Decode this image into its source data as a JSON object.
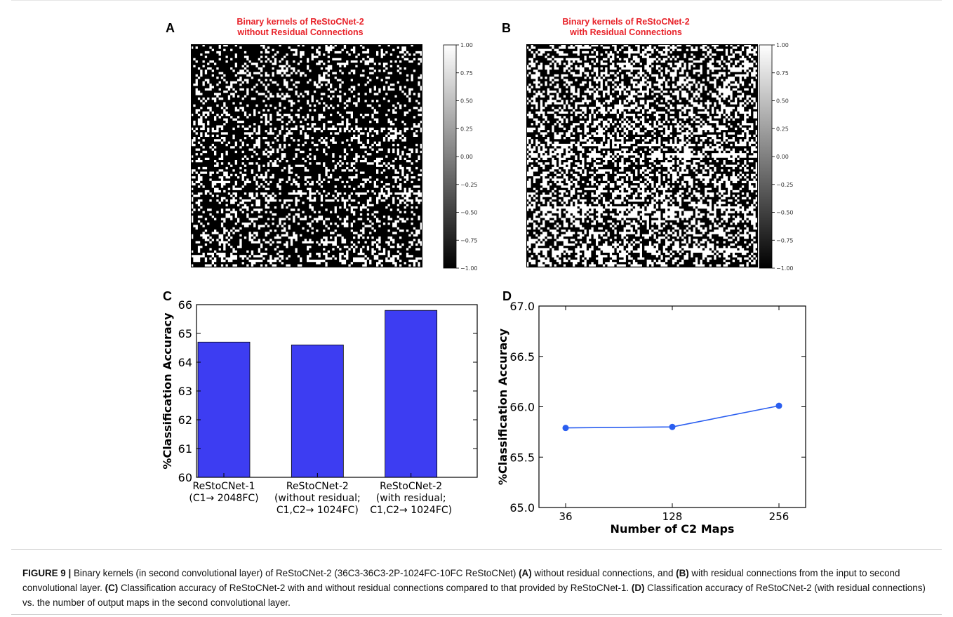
{
  "panels": {
    "a": {
      "letter": "A",
      "title_line1": "Binary kernels of ReStoCNet-2",
      "title_line2": "without Residual Connections"
    },
    "b": {
      "letter": "B",
      "title_line1": "Binary kernels of ReStoCNet-2",
      "title_line2": "with Residual Connections"
    },
    "c": {
      "letter": "C"
    },
    "d": {
      "letter": "D"
    }
  },
  "colorbar_ticks": [
    "1.00",
    "0.75",
    "0.50",
    "0.25",
    "0.00",
    "−0.25",
    "−0.50",
    "−0.75",
    "−1.00"
  ],
  "chart_data": [
    {
      "type": "heatmap",
      "colormap": "gray",
      "vmin": -1.0,
      "vmax": 1.0,
      "values": "binary (-1 / +1)",
      "colorbar": true
    },
    {
      "type": "heatmap",
      "colormap": "gray",
      "vmin": -1.0,
      "vmax": 1.0,
      "values": "binary (-1 / +1)",
      "colorbar": true
    },
    {
      "type": "bar",
      "categories": [
        [
          "ReStoCNet-1",
          "(C1→ 2048FC)"
        ],
        [
          "ReStoCNet-2",
          "(without residual;",
          "C1,C2→ 1024FC)"
        ],
        [
          "ReStoCNet-2",
          "(with residual;",
          "C1,C2→ 1024FC)"
        ]
      ],
      "values": [
        64.7,
        64.6,
        65.8
      ],
      "ylabel": "%Classification Accuracy",
      "ylim": [
        60,
        66
      ],
      "yticks": [
        60,
        61,
        62,
        63,
        64,
        65,
        66
      ],
      "color": "#3d3df2"
    },
    {
      "type": "line",
      "categories": [
        "36",
        "128",
        "256"
      ],
      "values": [
        65.79,
        65.8,
        66.01
      ],
      "xlabel": "Number of C2 Maps",
      "ylabel": "%Classification Accuracy",
      "ylim": [
        65.0,
        67.0
      ],
      "yticks": [
        "65.0",
        "65.5",
        "66.0",
        "66.5",
        "67.0"
      ],
      "color": "#2a5ef0"
    }
  ],
  "caption": {
    "label": "FIGURE 9 |",
    "t1": " Binary kernels (in second convolutional layer) of ReStoCNet-2 (36C3-36C3-2P-1024FC-10FC ReStoCNet) ",
    "b1": "(A)",
    "t2": " without residual connections, and ",
    "b2": "(B)",
    "t3": " with residual connections from the input to second convolutional layer. ",
    "b3": "(C)",
    "t4": " Classification accuracy of ReStoCNet-2 with and without residual connections compared to that provided by ReStoCNet-1. ",
    "b4": "(D)",
    "t5": " Classification accuracy of ReStoCNet-2 (with residual connections) vs. the number of output maps in the second convolutional layer."
  }
}
